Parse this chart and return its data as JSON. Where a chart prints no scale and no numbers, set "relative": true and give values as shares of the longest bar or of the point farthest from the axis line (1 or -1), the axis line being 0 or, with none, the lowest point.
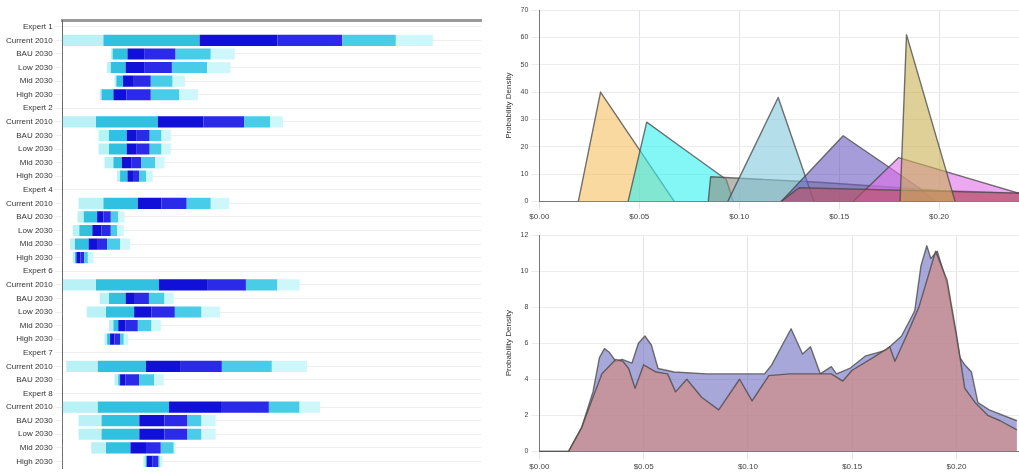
{
  "chart_data": [
    {
      "type": "bar",
      "orientation": "horizontal",
      "relative": true,
      "stacked": true,
      "grid": "y",
      "tick_labels": "y",
      "categories": [
        "Expert 1",
        "Current 2010",
        "BAU 2030",
        "Low 2030",
        "Mid 2030",
        "High 2030",
        "Expert 2",
        "Current 2010",
        "BAU 2030",
        "Low 2030",
        "Mid 2030",
        "High 2030",
        "Expert 4",
        "Current 2010",
        "BAU 2030",
        "Low 2030",
        "Mid 2030",
        "High 2030",
        "Expert 6",
        "Current 2010",
        "BAU 2030",
        "Low 2030",
        "Mid 2030",
        "High 2030",
        "Expert 7",
        "Current 2010",
        "BAU 2030",
        "Expert 8",
        "Current 2010",
        "BAU 2030",
        "Low 2030",
        "Mid 2030",
        "High 2030"
      ],
      "series": [
        {
          "color": "#ffffff",
          "values": [
            null,
            0,
            0.13,
            0.12,
            0.14,
            0.1,
            null,
            0,
            0.097,
            0.097,
            0.113,
            0.147,
            null,
            0.043,
            0.04,
            0.027,
            0.02,
            0.027,
            null,
            0,
            0.1,
            0.065,
            0.125,
            0.113,
            null,
            0.01,
            0.14,
            null,
            0,
            0.043,
            0.043,
            0.077,
            0.218
          ]
        },
        {
          "color": "#b8f2f6",
          "values": [
            null,
            0.11,
            0.005,
            0.01,
            0.005,
            0.005,
            null,
            0.09,
            0.028,
            0.028,
            0.024,
            0.008,
            null,
            0.067,
            0.017,
            0.018,
            0.013,
            0.006,
            null,
            0.09,
            0.025,
            0.052,
            0.012,
            0.007,
            null,
            0.085,
            0.01,
            null,
            0.095,
            0.062,
            0.062,
            0.04,
            0.006
          ]
        },
        {
          "color": "#30c0e0",
          "values": [
            null,
            0.26,
            0.04,
            0.04,
            0.018,
            0.032,
            null,
            0.167,
            0.048,
            0.048,
            0.023,
            0.02,
            null,
            0.093,
            0.036,
            0.035,
            0.037,
            0.004,
            null,
            0.17,
            0.045,
            0.076,
            0.013,
            0.008,
            null,
            0.13,
            0.005,
            null,
            0.192,
            0.102,
            0.102,
            0.066,
            0.003
          ]
        },
        {
          "color": "#1010d8",
          "values": [
            null,
            0.21,
            0.045,
            0.05,
            0.027,
            0.035,
            null,
            0.123,
            0.027,
            0.027,
            0.025,
            0.015,
            null,
            0.064,
            0.017,
            0.025,
            0.025,
            0.011,
            null,
            0.13,
            0.025,
            0.047,
            0.02,
            0.012,
            null,
            0.092,
            0.015,
            null,
            0.143,
            0.068,
            0.068,
            0.042,
            0.016
          ]
        },
        {
          "color": "#2a2ae8",
          "values": [
            null,
            0.175,
            0.085,
            0.075,
            0.048,
            0.066,
            null,
            0.11,
            0.035,
            0.035,
            0.027,
            0.017,
            null,
            0.068,
            0.02,
            0.025,
            0.025,
            0.01,
            null,
            0.105,
            0.038,
            0.063,
            0.033,
            0.015,
            null,
            0.113,
            0.037,
            null,
            0.127,
            0.062,
            0.062,
            0.04,
            0.016
          ]
        },
        {
          "color": "#48cce8",
          "values": [
            null,
            0.145,
            0.095,
            0.095,
            0.059,
            0.077,
            null,
            0.07,
            0.032,
            0.032,
            0.038,
            0.018,
            null,
            0.065,
            0.02,
            0.017,
            0.035,
            0.01,
            null,
            0.085,
            0.042,
            0.072,
            0.037,
            0.01,
            null,
            0.135,
            0.04,
            null,
            0.083,
            0.038,
            0.038,
            0.035,
            0.003
          ]
        },
        {
          "color": "#cdf7fa",
          "values": [
            null,
            0.1,
            0.065,
            0.063,
            0.033,
            0.05,
            null,
            0.035,
            0.025,
            0.025,
            0.025,
            0.018,
            null,
            0.05,
            0.017,
            0.018,
            0.027,
            0.015,
            null,
            0.06,
            0.025,
            0.05,
            0.025,
            0.012,
            null,
            0.095,
            0.026,
            null,
            0.055,
            0.038,
            0.038,
            0.005,
            0.007
          ]
        }
      ]
    },
    {
      "type": "area",
      "ylabel": "Probability Density",
      "grid": true,
      "xlim": [
        0,
        0.24
      ],
      "ylim": [
        0,
        70
      ],
      "xticks": [
        {
          "value": 0,
          "label": "$0.00"
        },
        {
          "value": 0.05,
          "label": "$0.05"
        },
        {
          "value": 0.1,
          "label": "$0.10"
        },
        {
          "value": 0.15,
          "label": "$0.15"
        },
        {
          "value": 0.2,
          "label": "$0.20"
        }
      ],
      "yticks": [
        0,
        10,
        20,
        30,
        40,
        50,
        60,
        70
      ],
      "series": [
        {
          "color": "#f5c060",
          "x": [
            0.0195,
            0.0306,
            0.0675
          ],
          "values": [
            0,
            40,
            0
          ]
        },
        {
          "color": "#30f0f0",
          "x": [
            0.0444,
            0.0537,
            0.0707,
            0.0935,
            0.097
          ],
          "values": [
            0,
            29,
            20,
            8,
            0
          ]
        },
        {
          "color": "#8c8c80",
          "x": [
            0.0845,
            0.0857,
            0.14,
            0.2,
            0.24
          ],
          "values": [
            0,
            9,
            7,
            4,
            3
          ]
        },
        {
          "color": "#80c8dc",
          "x": [
            0.0943,
            0.1195,
            0.1374
          ],
          "values": [
            0,
            38,
            0
          ]
        },
        {
          "color": "#6a5ac0",
          "x": [
            0.121,
            0.152,
            0.19,
            0.198
          ],
          "values": [
            0,
            24,
            5,
            0
          ]
        },
        {
          "color": "#e070e8",
          "x": [
            0.157,
            0.1797,
            0.24
          ],
          "values": [
            0,
            16,
            3
          ]
        },
        {
          "color": "#c05060",
          "x": [
            0.121,
            0.13,
            0.24
          ],
          "values": [
            0,
            5,
            3
          ]
        },
        {
          "color": "#c8b050",
          "x": [
            0.1805,
            0.1837,
            0.208
          ],
          "values": [
            0,
            61,
            0
          ]
        }
      ]
    },
    {
      "type": "area",
      "ylabel": "Probability Density",
      "grid": true,
      "xlim": [
        0,
        0.23
      ],
      "ylim": [
        0,
        12
      ],
      "xticks": [
        {
          "value": 0,
          "label": "$0.00"
        },
        {
          "value": 0.05,
          "label": "$0.05"
        },
        {
          "value": 0.1,
          "label": "$0.10"
        },
        {
          "value": 0.15,
          "label": "$0.15"
        },
        {
          "value": 0.2,
          "label": "$0.20"
        }
      ],
      "yticks": [
        0,
        2,
        4,
        6,
        8,
        10,
        12
      ],
      "series": [
        {
          "color": "#6c6cc0",
          "x": [
            0,
            0.014,
            0.0202,
            0.0257,
            0.0288,
            0.0312,
            0.0335,
            0.0366,
            0.0397,
            0.0444,
            0.0475,
            0.0506,
            0.0537,
            0.0569,
            0.0646,
            0.0802,
            0.108,
            0.1114,
            0.1207,
            0.1262,
            0.13,
            0.1347,
            0.14,
            0.1425,
            0.1488,
            0.1565,
            0.166,
            0.1737,
            0.18,
            0.183,
            0.1858,
            0.1877,
            0.1908,
            0.1955,
            0.2017,
            0.204,
            0.2072,
            0.2103,
            0.2157,
            0.229
          ],
          "values": [
            0,
            0,
            1.3,
            3.3,
            5.2,
            5.7,
            5.5,
            5.0,
            5.1,
            4.9,
            6.0,
            6.4,
            5.9,
            4.6,
            4.4,
            4.3,
            4.3,
            4.8,
            6.8,
            5.4,
            5.8,
            4.3,
            4.7,
            4.3,
            4.6,
            5.3,
            5.6,
            6.4,
            7.8,
            10.3,
            11.4,
            10.7,
            11.1,
            9.3,
            5.2,
            4.8,
            4.4,
            2.7,
            2.3,
            1.7
          ]
        },
        {
          "color": "#d88878",
          "x": [
            0,
            0.014,
            0.0202,
            0.0257,
            0.03,
            0.0366,
            0.04,
            0.0428,
            0.0459,
            0.05,
            0.056,
            0.0615,
            0.0653,
            0.0707,
            0.0778,
            0.086,
            0.096,
            0.102,
            0.11,
            0.12,
            0.14,
            0.1455,
            0.15,
            0.16,
            0.168,
            0.1705,
            0.176,
            0.182,
            0.19,
            0.1955,
            0.2,
            0.204,
            0.209,
            0.215,
            0.221,
            0.229
          ],
          "values": [
            0,
            0,
            1.3,
            3.0,
            4.3,
            5.1,
            5.0,
            4.6,
            3.5,
            4.8,
            4.4,
            4.3,
            3.3,
            4.0,
            3.0,
            2.3,
            4.0,
            2.8,
            4.2,
            4.3,
            4.3,
            3.9,
            4.5,
            5.2,
            5.8,
            5.0,
            6.4,
            8.0,
            11.1,
            9.5,
            6.5,
            3.5,
            2.7,
            2.0,
            1.7,
            1.2
          ]
        }
      ]
    }
  ]
}
